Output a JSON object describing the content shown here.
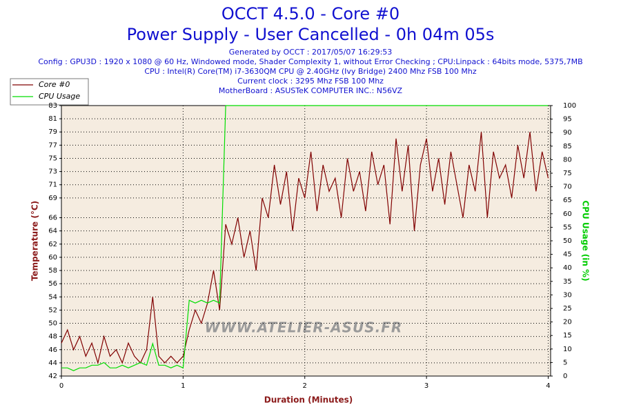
{
  "chart_data": {
    "type": "line",
    "title": "OCCT 4.5.0 - Core #0",
    "subtitle": "Power Supply - User Cancelled - 0h 04m 05s",
    "info": [
      "Generated by OCCT : 2017/05/07 16:29:53",
      "Config : GPU3D : 1920 x 1080 @ 60 Hz, Windowed mode, Shader Complexity 1, without Error Checking ; CPU:Linpack : 64bits mode, 5375,7MB",
      "CPU : Intel(R) Core(TM) i7-3630QM CPU @ 2.40GHz (Ivy Bridge) 2400 Mhz FSB 100 Mhz",
      "Current clock : 3295 Mhz FSB 100 Mhz",
      "MotherBoard : ASUSTeK COMPUTER INC.: N56VZ"
    ],
    "watermark": "WWW.ATELIER-ASUS.FR",
    "xlabel": "Duration (Minutes)",
    "ylabel": "Temperature (°C)",
    "y2label": "CPU Usage (in %)",
    "x": [
      0,
      0.05,
      0.1,
      0.15,
      0.2,
      0.25,
      0.3,
      0.35,
      0.4,
      0.45,
      0.5,
      0.55,
      0.6,
      0.65,
      0.7,
      0.75,
      0.8,
      0.85,
      0.9,
      0.95,
      1,
      1.05,
      1.1,
      1.15,
      1.2,
      1.25,
      1.3,
      1.35,
      1.4,
      1.45,
      1.5,
      1.55,
      1.6,
      1.65,
      1.7,
      1.75,
      1.8,
      1.85,
      1.9,
      1.95,
      2,
      2.05,
      2.1,
      2.15,
      2.2,
      2.25,
      2.3,
      2.35,
      2.4,
      2.45,
      2.5,
      2.55,
      2.6,
      2.65,
      2.7,
      2.75,
      2.8,
      2.85,
      2.9,
      2.95,
      3,
      3.05,
      3.1,
      3.15,
      3.2,
      3.25,
      3.3,
      3.35,
      3.4,
      3.45,
      3.5,
      3.55,
      3.6,
      3.65,
      3.7,
      3.75,
      3.8,
      3.85,
      3.9,
      3.95,
      4
    ],
    "series": [
      {
        "name": "Core #0",
        "color": "#800000",
        "axis": "y",
        "values": [
          47,
          49,
          46,
          48,
          45,
          47,
          44,
          48,
          45,
          46,
          44,
          47,
          45,
          44,
          46,
          54,
          45,
          44,
          45,
          44,
          45,
          49,
          52,
          50,
          53,
          58,
          52,
          65,
          62,
          66,
          60,
          64,
          58,
          69,
          66,
          74,
          68,
          73,
          64,
          72,
          69,
          76,
          67,
          74,
          70,
          72,
          66,
          75,
          70,
          73,
          67,
          76,
          71,
          74,
          65,
          78,
          70,
          77,
          64,
          74,
          78,
          70,
          75,
          68,
          76,
          71,
          66,
          74,
          70,
          79,
          66,
          76,
          72,
          74,
          69,
          77,
          72,
          79,
          70,
          76,
          72
        ]
      },
      {
        "name": "CPU Usage",
        "color": "#00dd00",
        "axis": "y2",
        "values": [
          3,
          3,
          2,
          3,
          3,
          4,
          4,
          5,
          3,
          3,
          4,
          3,
          4,
          5,
          4,
          12,
          4,
          4,
          3,
          4,
          3,
          28,
          27,
          28,
          27,
          28,
          27,
          100,
          100,
          100,
          100,
          100,
          100,
          100,
          100,
          100,
          100,
          100,
          100,
          100,
          100,
          100,
          100,
          100,
          100,
          100,
          100,
          100,
          100,
          100,
          100,
          100,
          100,
          100,
          100,
          100,
          100,
          100,
          100,
          100,
          100,
          100,
          100,
          100,
          100,
          100,
          100,
          100,
          100,
          100,
          100,
          100,
          100,
          100,
          100,
          100,
          100,
          100,
          100,
          100,
          100
        ]
      }
    ],
    "xlim": [
      0,
      4.02
    ],
    "xticks": [
      0,
      1,
      2,
      3,
      4
    ],
    "ylim": [
      42,
      83
    ],
    "yticks": [
      42,
      44,
      46,
      48,
      50,
      52,
      54,
      56,
      58,
      60,
      62,
      64,
      66,
      69,
      71,
      73,
      75,
      77,
      79,
      81,
      83
    ],
    "y2lim": [
      0,
      100
    ],
    "y2ticks": [
      0,
      5,
      10,
      15,
      20,
      25,
      30,
      35,
      40,
      45,
      50,
      55,
      60,
      65,
      70,
      75,
      80,
      85,
      90,
      95,
      100
    ],
    "grid": true,
    "legend": "top-left"
  }
}
